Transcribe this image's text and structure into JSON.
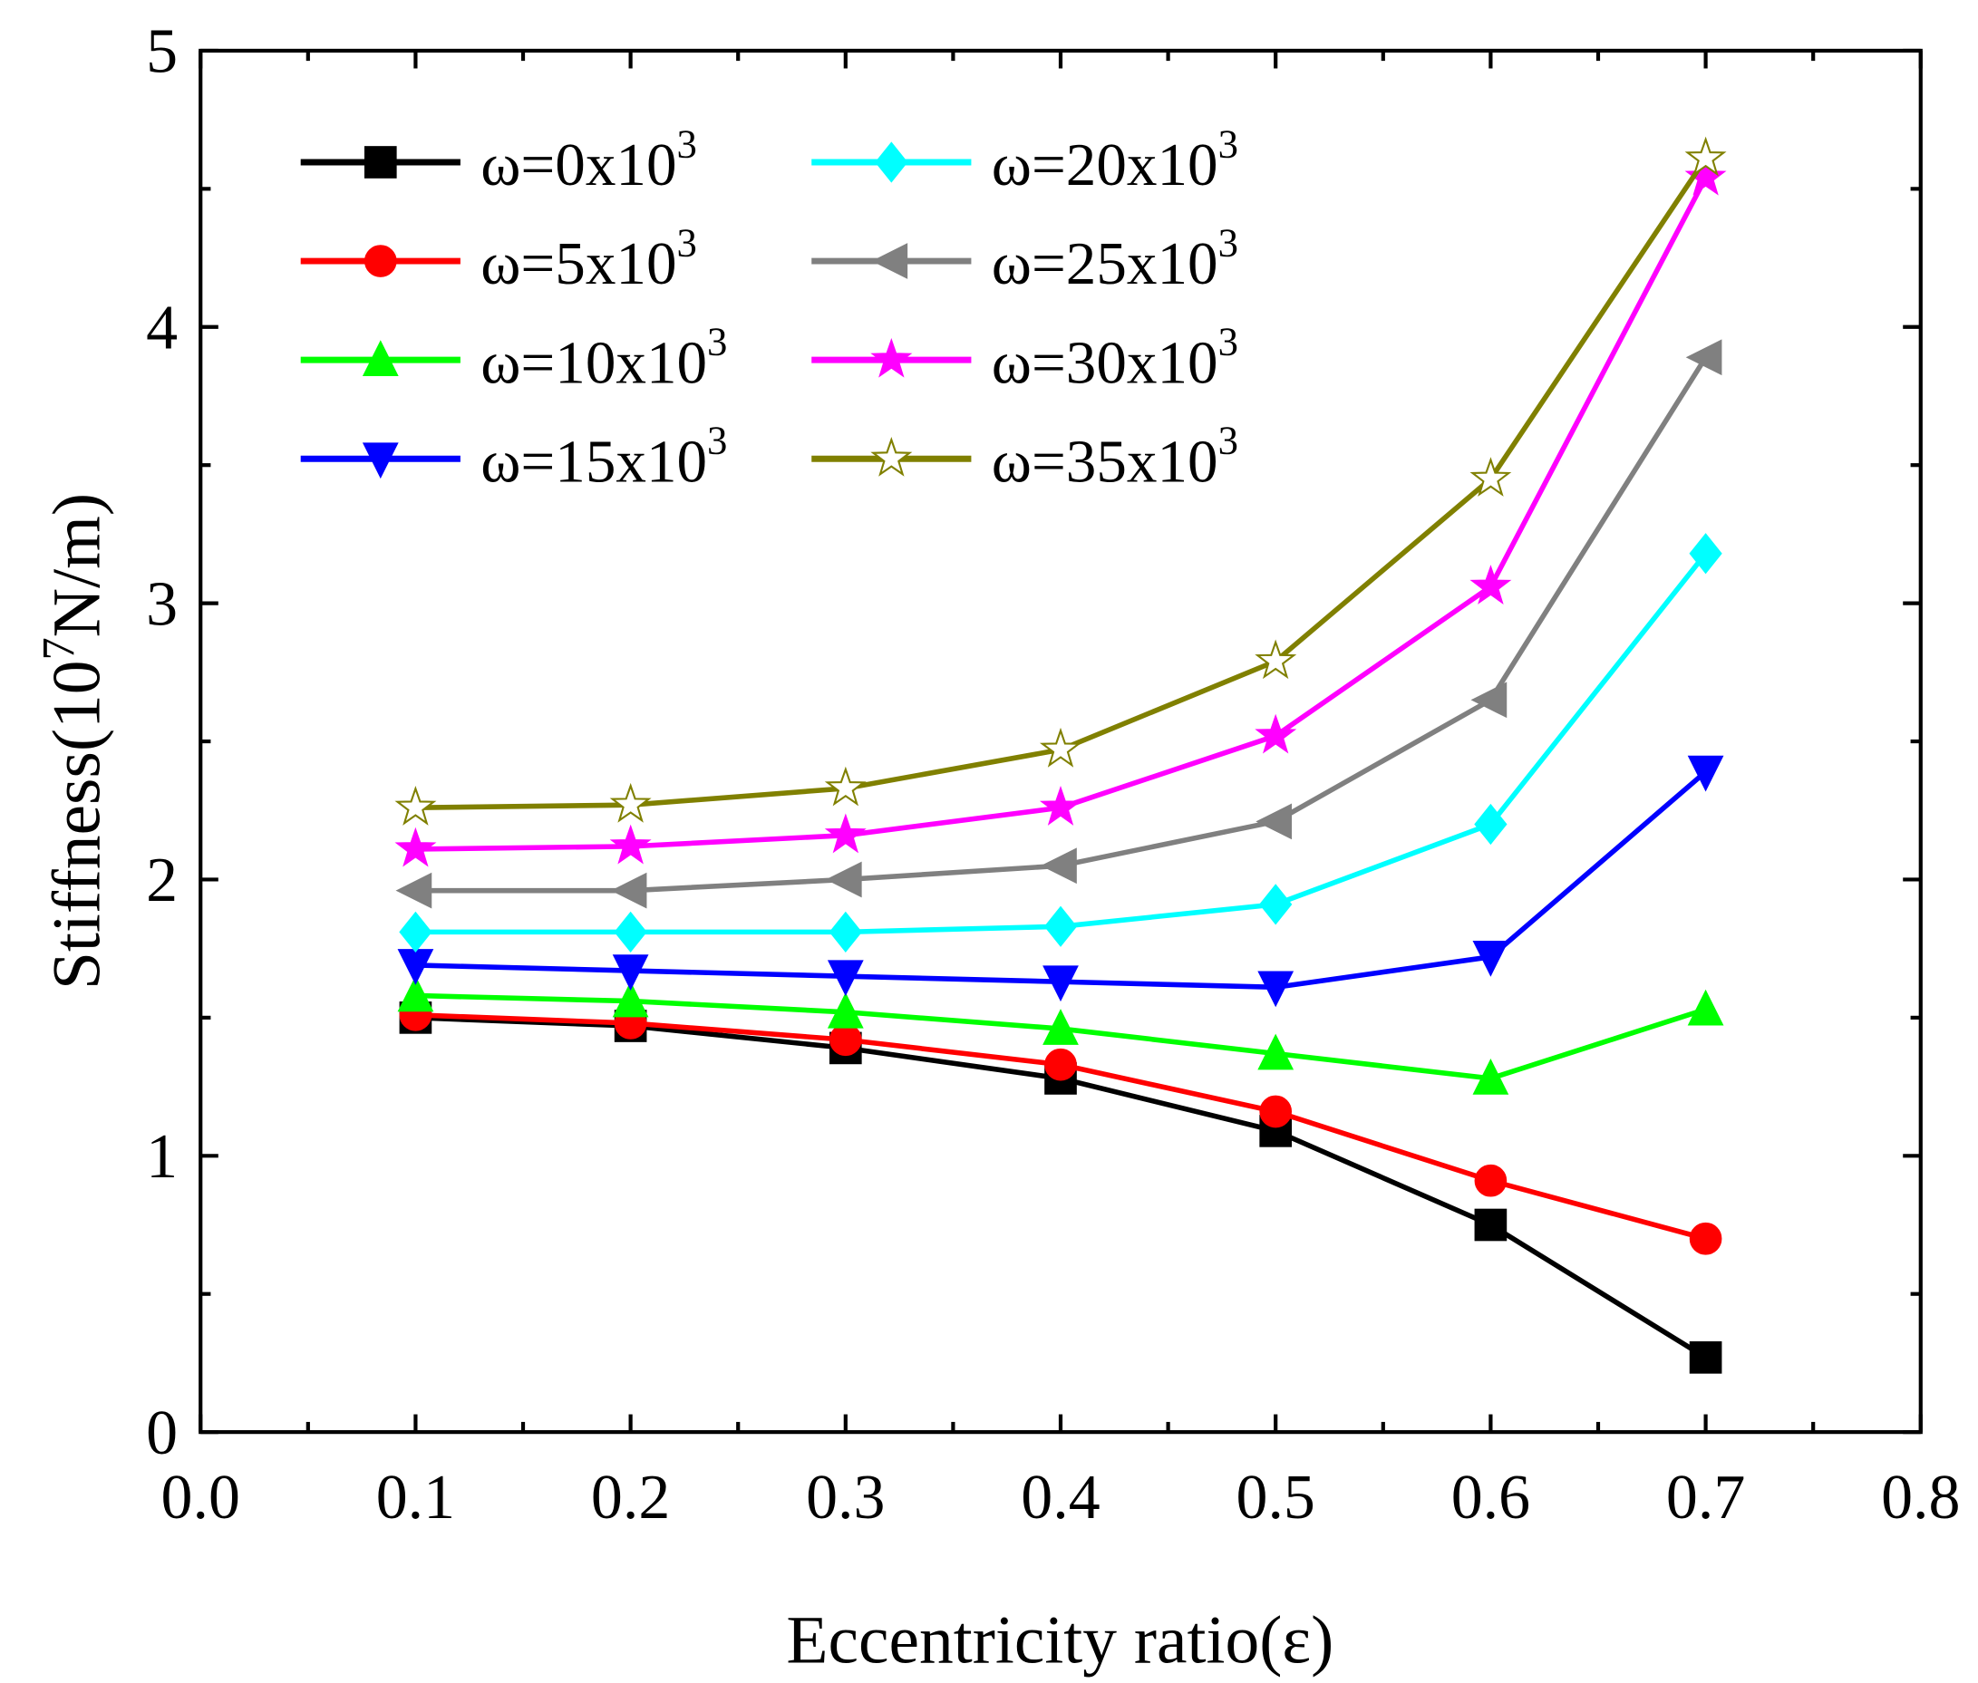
{
  "chart_data": {
    "type": "line",
    "title": "",
    "xlabel": "Eccentricity ratio(ε)",
    "ylabel": {
      "prefix": "Stiffness(10",
      "exponent": "7",
      "suffix": "N/m)"
    },
    "xlim": [
      0.0,
      0.8
    ],
    "ylim": [
      0,
      5
    ],
    "xticks": [
      "0.0",
      "0.1",
      "0.2",
      "0.3",
      "0.4",
      "0.5",
      "0.6",
      "0.7",
      "0.8"
    ],
    "yticks": [
      "0",
      "1",
      "2",
      "3",
      "4",
      "5"
    ],
    "grid": false,
    "legend_position": "top-left",
    "x": [
      0.1,
      0.2,
      0.3,
      0.4,
      0.5,
      0.6,
      0.7
    ],
    "series": [
      {
        "name": "ω=0x10",
        "exponent": "3",
        "color": "#000000",
        "marker": "square",
        "values": [
          1.5,
          1.47,
          1.39,
          1.28,
          1.09,
          0.75,
          0.27
        ]
      },
      {
        "name": "ω=5x10",
        "exponent": "3",
        "color": "#ff0000",
        "marker": "circle",
        "values": [
          1.51,
          1.48,
          1.42,
          1.33,
          1.16,
          0.91,
          0.7
        ]
      },
      {
        "name": "ω=10x10",
        "exponent": "3",
        "color": "#00ff00",
        "marker": "triangle-up",
        "values": [
          1.58,
          1.56,
          1.52,
          1.46,
          1.37,
          1.28,
          1.53
        ]
      },
      {
        "name": "ω=15x10",
        "exponent": "3",
        "color": "#0000ff",
        "marker": "triangle-down",
        "values": [
          1.69,
          1.67,
          1.65,
          1.63,
          1.61,
          1.72,
          2.39
        ]
      },
      {
        "name": "ω=20x10",
        "exponent": "3",
        "color": "#00ffff",
        "marker": "diamond",
        "values": [
          1.81,
          1.81,
          1.81,
          1.83,
          1.91,
          2.2,
          3.18
        ]
      },
      {
        "name": "ω=25x10",
        "exponent": "3",
        "color": "#808080",
        "marker": "triangle-left",
        "values": [
          1.96,
          1.96,
          2.0,
          2.05,
          2.21,
          2.65,
          3.89
        ]
      },
      {
        "name": "ω=30x10",
        "exponent": "3",
        "color": "#ff00ff",
        "marker": "star",
        "values": [
          2.11,
          2.12,
          2.16,
          2.26,
          2.52,
          3.06,
          4.54
        ]
      },
      {
        "name": "ω=35x10",
        "exponent": "3",
        "color": "#808000",
        "marker": "star-open",
        "values": [
          2.26,
          2.27,
          2.33,
          2.47,
          2.79,
          3.45,
          4.61
        ]
      }
    ]
  }
}
